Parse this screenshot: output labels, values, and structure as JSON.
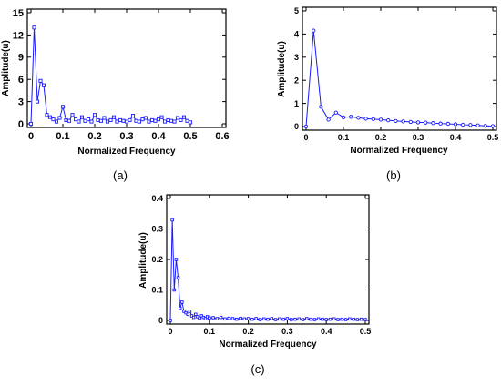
{
  "chart_data": [
    {
      "panel_label": "(a)",
      "type": "line",
      "xlabel": "Normalized Frequency",
      "ylabel": "Amplitude(u)",
      "xlim": [
        0,
        0.6
      ],
      "ylim": [
        0,
        15
      ],
      "xticks": [
        "0",
        "0.1",
        "0.2",
        "0.3",
        "0.4",
        "0.5",
        "0.6"
      ],
      "yticks": [
        "0",
        "3",
        "6",
        "9",
        "12",
        "15"
      ],
      "grid": false,
      "marker": "square",
      "color": "#1a1aff",
      "x": [
        0,
        0.01,
        0.02,
        0.03,
        0.04,
        0.05,
        0.06,
        0.07,
        0.08,
        0.09,
        0.1,
        0.11,
        0.12,
        0.13,
        0.14,
        0.15,
        0.16,
        0.17,
        0.18,
        0.19,
        0.2,
        0.21,
        0.22,
        0.23,
        0.24,
        0.25,
        0.26,
        0.27,
        0.28,
        0.29,
        0.3,
        0.31,
        0.32,
        0.33,
        0.34,
        0.35,
        0.36,
        0.37,
        0.38,
        0.39,
        0.4,
        0.41,
        0.42,
        0.43,
        0.44,
        0.45,
        0.46,
        0.47,
        0.48,
        0.49,
        0.5
      ],
      "y": [
        0,
        13,
        3,
        5.8,
        5.2,
        1.2,
        0.9,
        0.6,
        0.3,
        0.8,
        2.3,
        0.5,
        0.4,
        1.2,
        0.6,
        0.3,
        0.9,
        0.4,
        0.6,
        0.3,
        1.2,
        0.5,
        0.4,
        0.8,
        0.3,
        0.5,
        0.9,
        0.3,
        0.5,
        0.4,
        0.3,
        0.5,
        1.1,
        0.4,
        0.3,
        0.6,
        0.8,
        0.3,
        0.5,
        0.4,
        0.6,
        0.9,
        0.3,
        0.5,
        0.4,
        0.3,
        0.8,
        0.5,
        0.9,
        0.4,
        0.2
      ]
    },
    {
      "panel_label": "(b)",
      "type": "line",
      "xlabel": "Normalized Frequency",
      "ylabel": "Amplitude(u)",
      "xlim": [
        0,
        0.5
      ],
      "ylim": [
        0,
        5
      ],
      "xticks": [
        "0",
        "0.1",
        "0.2",
        "0.3",
        "0.4",
        "0.5"
      ],
      "yticks": [
        "0",
        "1",
        "2",
        "3",
        "4",
        "5"
      ],
      "grid": false,
      "marker": "circle",
      "color": "#1a1aff",
      "x": [
        0,
        0.02,
        0.04,
        0.06,
        0.08,
        0.1,
        0.12,
        0.14,
        0.16,
        0.18,
        0.2,
        0.22,
        0.24,
        0.26,
        0.28,
        0.3,
        0.32,
        0.34,
        0.36,
        0.38,
        0.4,
        0.42,
        0.44,
        0.46,
        0.48,
        0.5
      ],
      "y": [
        0,
        4.15,
        0.85,
        0.3,
        0.6,
        0.4,
        0.42,
        0.38,
        0.34,
        0.32,
        0.3,
        0.27,
        0.24,
        0.22,
        0.2,
        0.18,
        0.17,
        0.15,
        0.13,
        0.12,
        0.1,
        0.08,
        0.07,
        0.05,
        0.03,
        0.02
      ]
    },
    {
      "panel_label": "(c)",
      "type": "line",
      "xlabel": "Normalized Frequency",
      "ylabel": "Amplitude(u)",
      "xlim": [
        0,
        0.5
      ],
      "ylim": [
        0,
        0.4
      ],
      "xticks": [
        "0",
        "0.1",
        "0.2",
        "0.3",
        "0.4",
        "0.5"
      ],
      "yticks": [
        "0",
        "0.1",
        "0.2",
        "0.3",
        "0.4"
      ],
      "grid": false,
      "marker": "square",
      "color": "#1a1aff",
      "x": [
        0,
        0.005,
        0.01,
        0.015,
        0.02,
        0.025,
        0.03,
        0.035,
        0.04,
        0.045,
        0.05,
        0.055,
        0.06,
        0.065,
        0.07,
        0.075,
        0.08,
        0.085,
        0.09,
        0.095,
        0.1,
        0.11,
        0.12,
        0.13,
        0.14,
        0.15,
        0.16,
        0.17,
        0.18,
        0.19,
        0.2,
        0.21,
        0.22,
        0.23,
        0.24,
        0.25,
        0.26,
        0.27,
        0.28,
        0.29,
        0.3,
        0.31,
        0.32,
        0.33,
        0.34,
        0.35,
        0.36,
        0.37,
        0.38,
        0.39,
        0.4,
        0.41,
        0.42,
        0.43,
        0.44,
        0.45,
        0.46,
        0.47,
        0.48,
        0.49,
        0.5
      ],
      "y": [
        0,
        0.33,
        0.1,
        0.2,
        0.14,
        0.04,
        0.06,
        0.03,
        0.025,
        0.02,
        0.03,
        0.015,
        0.01,
        0.02,
        0.012,
        0.008,
        0.015,
        0.01,
        0.006,
        0.012,
        0.008,
        0.009,
        0.006,
        0.01,
        0.005,
        0.007,
        0.006,
        0.004,
        0.007,
        0.005,
        0.006,
        0.004,
        0.006,
        0.003,
        0.005,
        0.004,
        0.006,
        0.003,
        0.005,
        0.004,
        0.006,
        0.003,
        0.004,
        0.005,
        0.003,
        0.006,
        0.004,
        0.003,
        0.005,
        0.004,
        0.003,
        0.004,
        0.005,
        0.003,
        0.004,
        0.003,
        0.005,
        0.004,
        0.003,
        0.004,
        0.003
      ]
    }
  ]
}
